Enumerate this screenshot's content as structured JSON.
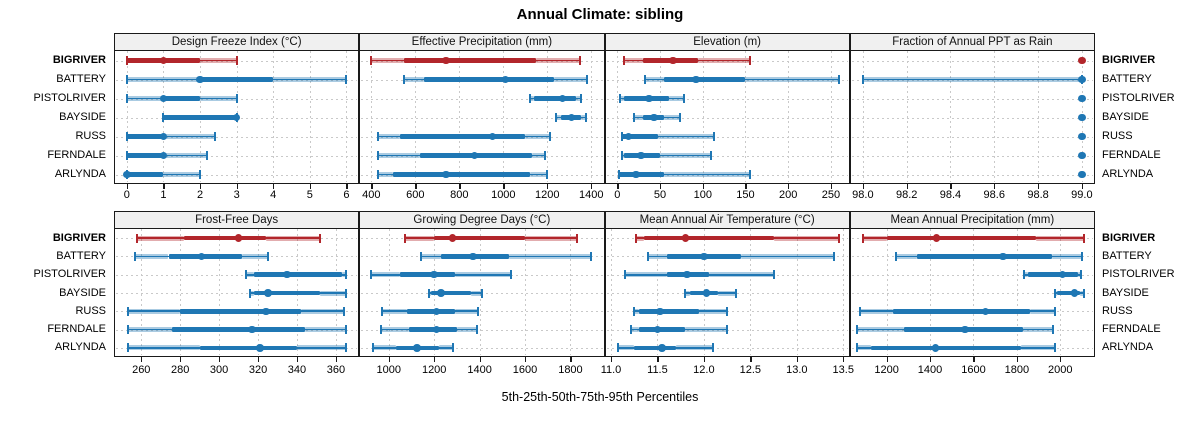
{
  "chart_data": {
    "type": "dot-interval",
    "title": "Annual Climate: sibling",
    "caption": "5th-25th-50th-75th-95th Percentiles",
    "percentiles": [
      "5th",
      "25th",
      "50th",
      "75th",
      "95th"
    ],
    "stations": [
      "BIGRIVER",
      "BATTERY",
      "PISTOLRIVER",
      "BAYSIDE",
      "RUSS",
      "FERNDALE",
      "ARLYNDA"
    ],
    "highlight_station": "BIGRIVER",
    "colors": {
      "highlight": "#B2262B",
      "normal": "#1F77B4",
      "header_bg": "#F0F0F0",
      "border": "#1A1A1A",
      "grid": "#C9C9C9"
    },
    "layout": {
      "rows": 2,
      "cols": 4,
      "legend": "none",
      "grid": "dotted"
    },
    "panels": [
      {
        "title": "Design Freeze Index (°C)",
        "row": 0,
        "col": 0,
        "xlim": [
          -0.35,
          6.35
        ],
        "ticks": [
          0,
          1,
          2,
          3,
          4,
          5,
          6
        ],
        "tick_labels": [
          "0",
          "1",
          "2",
          "3",
          "4",
          "5",
          "6"
        ],
        "values": [
          [
            0,
            0,
            1,
            2,
            3
          ],
          [
            0,
            2,
            2,
            4,
            6
          ],
          [
            0,
            1,
            1,
            2,
            3
          ],
          [
            1,
            1,
            3,
            3,
            3
          ],
          [
            0,
            0,
            1,
            1,
            2.4
          ],
          [
            0,
            0,
            1,
            1,
            2.2
          ],
          [
            0,
            0,
            0,
            1,
            2
          ]
        ]
      },
      {
        "title": "Effective Precipitation (mm)",
        "row": 0,
        "col": 1,
        "xlim": [
          345,
          1460
        ],
        "ticks": [
          400,
          600,
          800,
          1000,
          1200,
          1400
        ],
        "tick_labels": [
          "400",
          "600",
          "800",
          "1000",
          "1200",
          "1400"
        ],
        "values": [
          [
            400,
            550,
            740,
            1150,
            1350
          ],
          [
            550,
            640,
            1010,
            1230,
            1380
          ],
          [
            1120,
            1140,
            1270,
            1330,
            1355
          ],
          [
            1240,
            1260,
            1310,
            1355,
            1375
          ],
          [
            430,
            530,
            950,
            1100,
            1210
          ],
          [
            430,
            620,
            870,
            1130,
            1190
          ],
          [
            430,
            500,
            740,
            1120,
            1200
          ]
        ]
      },
      {
        "title": "Elevation (m)",
        "row": 0,
        "col": 2,
        "xlim": [
          -15,
          272
        ],
        "ticks": [
          0,
          50,
          100,
          150,
          200,
          250
        ],
        "tick_labels": [
          "0",
          "50",
          "100",
          "150",
          "200",
          "250"
        ],
        "values": [
          [
            8,
            30,
            65,
            95,
            155
          ],
          [
            32,
            55,
            92,
            150,
            260
          ],
          [
            3,
            8,
            37,
            60,
            78
          ],
          [
            20,
            30,
            43,
            55,
            73
          ],
          [
            5,
            5,
            13,
            48,
            113
          ],
          [
            5,
            8,
            28,
            50,
            110
          ],
          [
            2,
            2,
            22,
            55,
            155
          ]
        ]
      },
      {
        "title": "Fraction of Annual PPT as Rain",
        "row": 0,
        "col": 3,
        "xlim": [
          97.94,
          99.06
        ],
        "ticks": [
          98.0,
          98.2,
          98.4,
          98.6,
          98.8,
          99.0
        ],
        "tick_labels": [
          "98.0",
          "98.2",
          "98.4",
          "98.6",
          "98.8",
          "99.0"
        ],
        "values": [
          [
            99,
            99,
            99,
            99,
            99
          ],
          [
            98,
            99,
            99,
            99,
            99
          ],
          [
            99,
            99,
            99,
            99,
            99
          ],
          [
            99,
            99,
            99,
            99,
            99
          ],
          [
            99,
            99,
            99,
            99,
            99
          ],
          [
            99,
            99,
            99,
            99,
            99
          ],
          [
            99,
            99,
            99,
            99,
            99
          ]
        ]
      },
      {
        "title": "Frost-Free Days",
        "row": 1,
        "col": 0,
        "xlim": [
          246,
          372
        ],
        "ticks": [
          260,
          280,
          300,
          320,
          340,
          360
        ],
        "tick_labels": [
          "260",
          "280",
          "300",
          "320",
          "340",
          "360"
        ],
        "values": [
          [
            258,
            282,
            310,
            324,
            352
          ],
          [
            257,
            274,
            291,
            312,
            325
          ],
          [
            314,
            318,
            335,
            363,
            365
          ],
          [
            316,
            318,
            325,
            352,
            365
          ],
          [
            253,
            280,
            324,
            342,
            364
          ],
          [
            253,
            276,
            317,
            344,
            365
          ],
          [
            253,
            290,
            321,
            340,
            365
          ]
        ]
      },
      {
        "title": "Growing Degree Days (°C)",
        "row": 1,
        "col": 1,
        "xlim": [
          870,
          1950
        ],
        "ticks": [
          1000,
          1200,
          1400,
          1600,
          1800
        ],
        "tick_labels": [
          "1000",
          "1200",
          "1400",
          "1600",
          "1800"
        ],
        "values": [
          [
            1070,
            1200,
            1280,
            1600,
            1830
          ],
          [
            1140,
            1230,
            1370,
            1530,
            1890
          ],
          [
            920,
            1050,
            1200,
            1290,
            1540
          ],
          [
            1175,
            1185,
            1230,
            1360,
            1410
          ],
          [
            970,
            1080,
            1210,
            1290,
            1395
          ],
          [
            965,
            1090,
            1210,
            1300,
            1390
          ],
          [
            930,
            1030,
            1125,
            1220,
            1285
          ]
        ]
      },
      {
        "title": "Mean Annual Air Temperature (°C)",
        "row": 1,
        "col": 2,
        "xlim": [
          10.93,
          13.57
        ],
        "ticks": [
          11.0,
          11.5,
          12.0,
          12.5,
          13.0,
          13.5
        ],
        "tick_labels": [
          "11.0",
          "11.5",
          "12.0",
          "12.5",
          "13.0",
          "13.5"
        ],
        "values": [
          [
            11.27,
            11.35,
            11.8,
            12.75,
            13.45
          ],
          [
            11.4,
            11.6,
            12.0,
            12.4,
            13.4
          ],
          [
            11.15,
            11.6,
            11.82,
            12.05,
            12.75
          ],
          [
            11.8,
            11.85,
            12.03,
            12.15,
            12.35
          ],
          [
            11.25,
            11.3,
            11.53,
            11.95,
            12.25
          ],
          [
            11.22,
            11.3,
            11.5,
            11.8,
            12.25
          ],
          [
            11.07,
            11.25,
            11.55,
            11.7,
            12.1
          ]
        ]
      },
      {
        "title": "Mean Annual Precipitation (mm)",
        "row": 1,
        "col": 3,
        "xlim": [
          1030,
          2160
        ],
        "ticks": [
          1200,
          1400,
          1600,
          1800,
          2000
        ],
        "tick_labels": [
          "1200",
          "1400",
          "1600",
          "1800",
          "2000"
        ],
        "values": [
          [
            1090,
            1200,
            1430,
            1890,
            2110
          ],
          [
            1245,
            1340,
            1735,
            1960,
            2100
          ],
          [
            1835,
            1850,
            2010,
            2080,
            2095
          ],
          [
            1975,
            1985,
            2065,
            2090,
            2110
          ],
          [
            1075,
            1230,
            1655,
            1860,
            1975
          ],
          [
            1065,
            1280,
            1560,
            1830,
            1965
          ],
          [
            1065,
            1130,
            1425,
            1820,
            1975
          ]
        ]
      }
    ]
  }
}
